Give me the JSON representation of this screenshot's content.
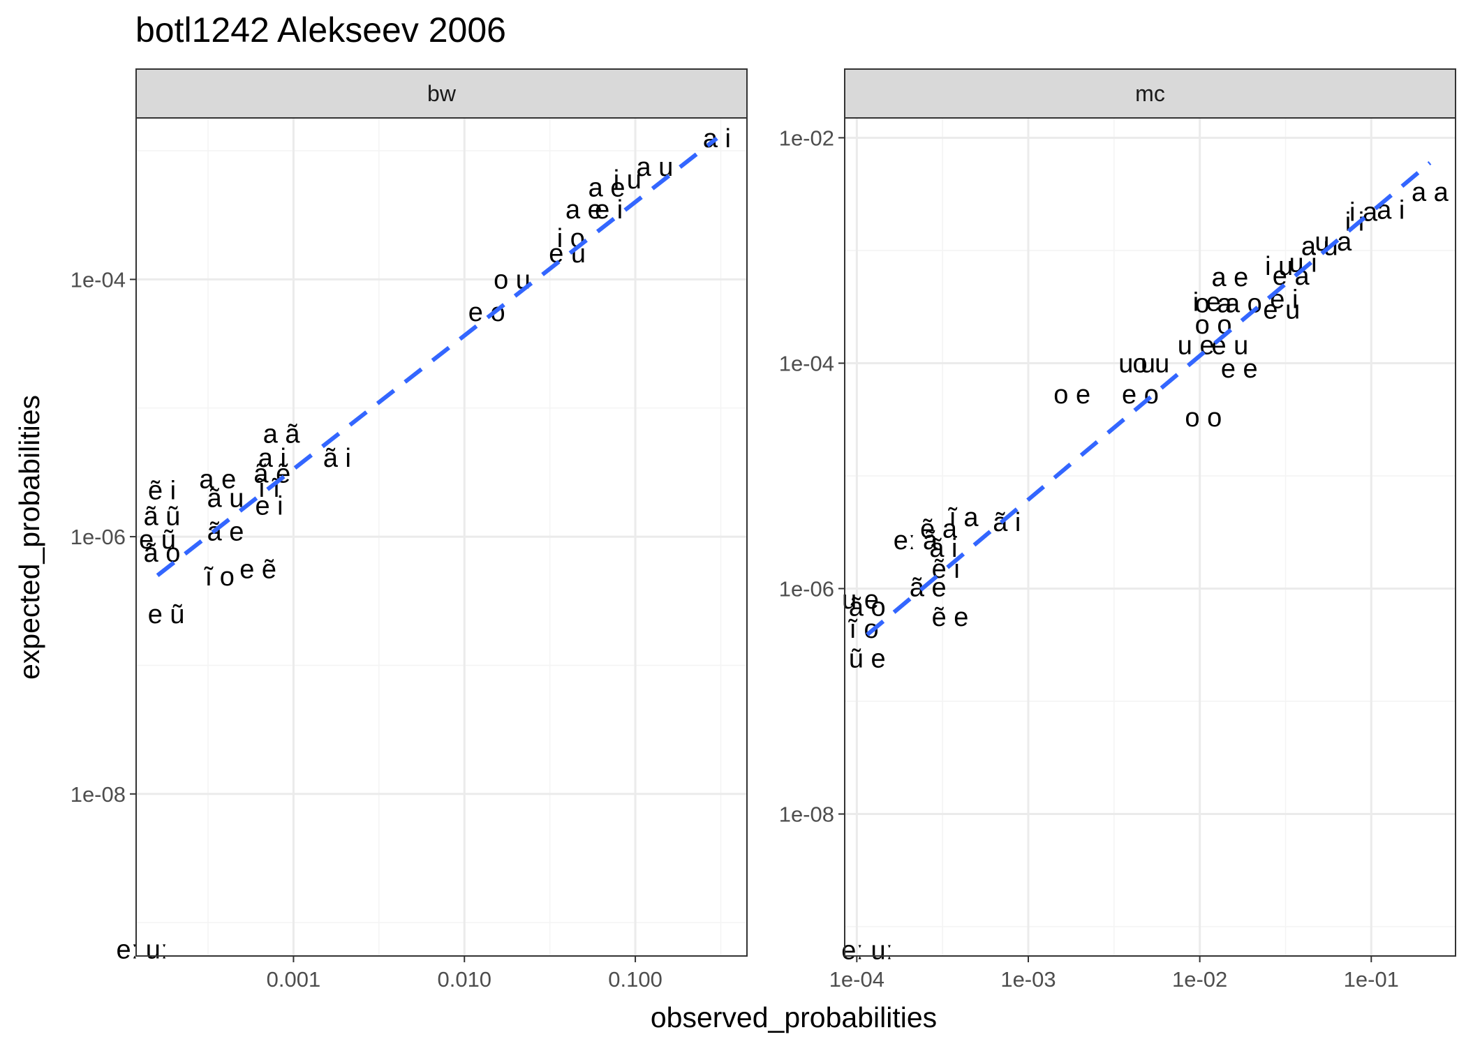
{
  "title": "botl1242 Alekseev 2006",
  "xlabel": "observed_probabilities",
  "ylabel": "expected_probabilities",
  "colors": {
    "fit_line": "#3366FF",
    "strip_fill": "#D9D9D9",
    "panel_border": "#333333",
    "grid_major": "#EBEBEB",
    "grid_minor": "#F4F4F4",
    "text": "#000000"
  },
  "chart_data": [
    {
      "type": "scatter",
      "facet": "bw",
      "x_scale": "log10",
      "y_scale": "log10",
      "xlim": [
        0.00012,
        0.45
      ],
      "ylim": [
        5.5e-10,
        0.0018
      ],
      "x_ticks": [
        {
          "value": 0.001,
          "label": "0.001"
        },
        {
          "value": 0.01,
          "label": "0.010"
        },
        {
          "value": 0.1,
          "label": "0.100"
        }
      ],
      "y_ticks": [
        {
          "value": 1e-08,
          "label": "1e-08"
        },
        {
          "value": 1e-06,
          "label": "1e-06"
        },
        {
          "value": 0.0001,
          "label": "1e-04"
        }
      ],
      "fit_line": {
        "x": [
          0.00016,
          0.3
        ],
        "y": [
          5e-07,
          0.00125
        ]
      },
      "points": [
        {
          "label": "a i",
          "x": 0.3,
          "y": 0.00125
        },
        {
          "label": "a u",
          "x": 0.13,
          "y": 0.00075
        },
        {
          "label": "i u",
          "x": 0.09,
          "y": 0.0006
        },
        {
          "label": "a e",
          "x": 0.068,
          "y": 0.00052
        },
        {
          "label": "a e",
          "x": 0.05,
          "y": 0.00035
        },
        {
          "label": "e i",
          "x": 0.07,
          "y": 0.00035
        },
        {
          "label": "i o",
          "x": 0.042,
          "y": 0.00021
        },
        {
          "label": "e u",
          "x": 0.04,
          "y": 0.00016
        },
        {
          "label": "o u",
          "x": 0.019,
          "y": 0.0001
        },
        {
          "label": "e o",
          "x": 0.0135,
          "y": 5.6e-05
        },
        {
          "label": "a ã",
          "x": 0.00085,
          "y": 6.3e-06
        },
        {
          "label": "a i",
          "x": 0.00075,
          "y": 4.1e-06
        },
        {
          "label": "ã i",
          "x": 0.0018,
          "y": 4.1e-06
        },
        {
          "label": "ã ẽ",
          "x": 0.00075,
          "y": 3.1e-06
        },
        {
          "label": "a e",
          "x": 0.00036,
          "y": 2.8e-06
        },
        {
          "label": "ĩ ĩ",
          "x": 0.00072,
          "y": 2.4e-06
        },
        {
          "label": "ẽ i",
          "x": 0.00017,
          "y": 2.3e-06
        },
        {
          "label": "ã u",
          "x": 0.0004,
          "y": 2e-06
        },
        {
          "label": "e i",
          "x": 0.00072,
          "y": 1.75e-06
        },
        {
          "label": "ã ũ",
          "x": 0.00017,
          "y": 1.45e-06
        },
        {
          "label": "ã e",
          "x": 0.0004,
          "y": 1.1e-06
        },
        {
          "label": "e ũ",
          "x": 0.00016,
          "y": 9.5e-07
        },
        {
          "label": "ã o",
          "x": 0.00017,
          "y": 7.5e-07
        },
        {
          "label": "e ẽ",
          "x": 0.00062,
          "y": 5.6e-07
        },
        {
          "label": "ĩ o",
          "x": 0.00037,
          "y": 4.9e-07
        },
        {
          "label": "e ũ",
          "x": 0.00018,
          "y": 2.5e-07
        },
        {
          "label": "eː uː",
          "x": 0.00013,
          "y": 6.2e-10
        }
      ]
    },
    {
      "type": "scatter",
      "facet": "mc",
      "x_scale": "log10",
      "y_scale": "log10",
      "xlim": [
        8.5e-05,
        0.31
      ],
      "ylim": [
        5.5e-10,
        0.015
      ],
      "x_ticks": [
        {
          "value": 0.0001,
          "label": "1e-04"
        },
        {
          "value": 0.001,
          "label": "1e-03"
        },
        {
          "value": 0.01,
          "label": "1e-02"
        },
        {
          "value": 0.1,
          "label": "1e-01"
        }
      ],
      "y_ticks": [
        {
          "value": 1e-08,
          "label": "1e-08"
        },
        {
          "value": 1e-06,
          "label": "1e-06"
        },
        {
          "value": 0.0001,
          "label": "1e-04"
        },
        {
          "value": 0.01,
          "label": "1e-02"
        }
      ],
      "fit_line": {
        "x": [
          0.000115,
          0.22
        ],
        "y": [
          3.9e-07,
          0.006
        ]
      },
      "points": [
        {
          "label": "a a",
          "x": 0.22,
          "y": 0.0033
        },
        {
          "label": "a i",
          "x": 0.13,
          "y": 0.0023
        },
        {
          "label": "i a",
          "x": 0.09,
          "y": 0.0022
        },
        {
          "label": "i i",
          "x": 0.08,
          "y": 0.0018
        },
        {
          "label": "u a",
          "x": 0.06,
          "y": 0.0012
        },
        {
          "label": "a u",
          "x": 0.05,
          "y": 0.0011
        },
        {
          "label": "u i",
          "x": 0.04,
          "y": 0.00078
        },
        {
          "label": "i u",
          "x": 0.029,
          "y": 0.00073
        },
        {
          "label": "e a",
          "x": 0.034,
          "y": 0.0006
        },
        {
          "label": "a e",
          "x": 0.015,
          "y": 0.00058
        },
        {
          "label": "e i",
          "x": 0.031,
          "y": 0.00037
        },
        {
          "label": "i e",
          "x": 0.011,
          "y": 0.00035
        },
        {
          "label": "o a",
          "x": 0.012,
          "y": 0.00034
        },
        {
          "label": "a o",
          "x": 0.018,
          "y": 0.00034
        },
        {
          "label": "e u",
          "x": 0.03,
          "y": 0.0003
        },
        {
          "label": "o o",
          "x": 0.012,
          "y": 0.00022
        },
        {
          "label": "u e",
          "x": 0.0095,
          "y": 0.000145
        },
        {
          "label": "e u",
          "x": 0.015,
          "y": 0.000145
        },
        {
          "label": "e e",
          "x": 0.017,
          "y": 9e-05
        },
        {
          "label": "u u",
          "x": 0.0043,
          "y": 0.0001
        },
        {
          "label": "o u",
          "x": 0.0052,
          "y": 0.0001
        },
        {
          "label": "o e",
          "x": 0.0018,
          "y": 5.3e-05
        },
        {
          "label": "e o",
          "x": 0.0045,
          "y": 5.3e-05
        },
        {
          "label": "o o",
          "x": 0.0105,
          "y": 3.3e-05
        },
        {
          "label": "ĩ a",
          "x": 0.00042,
          "y": 4.3e-06
        },
        {
          "label": "ã i",
          "x": 0.00075,
          "y": 3.9e-06
        },
        {
          "label": "ẽ a",
          "x": 0.0003,
          "y": 3.4e-06
        },
        {
          "label": "eː ã",
          "x": 0.00022,
          "y": 2.7e-06
        },
        {
          "label": "ã i",
          "x": 0.00032,
          "y": 2.3e-06
        },
        {
          "label": "ẽ i",
          "x": 0.00033,
          "y": 1.5e-06
        },
        {
          "label": "ã e",
          "x": 0.00026,
          "y": 1.03e-06
        },
        {
          "label": "u e",
          "x": 0.000105,
          "y": 8e-07
        },
        {
          "label": "ã o",
          "x": 0.000115,
          "y": 6.9e-07
        },
        {
          "label": "ẽ e",
          "x": 0.00035,
          "y": 5.6e-07
        },
        {
          "label": "ĩ o",
          "x": 0.00011,
          "y": 4.4e-07
        },
        {
          "label": "ũ e",
          "x": 0.000115,
          "y": 2.4e-07
        },
        {
          "label": "eː uː",
          "x": 0.000115,
          "y": 6.2e-10
        }
      ]
    }
  ],
  "facets": [
    {
      "strip_label": "bw"
    },
    {
      "strip_label": "mc"
    }
  ]
}
